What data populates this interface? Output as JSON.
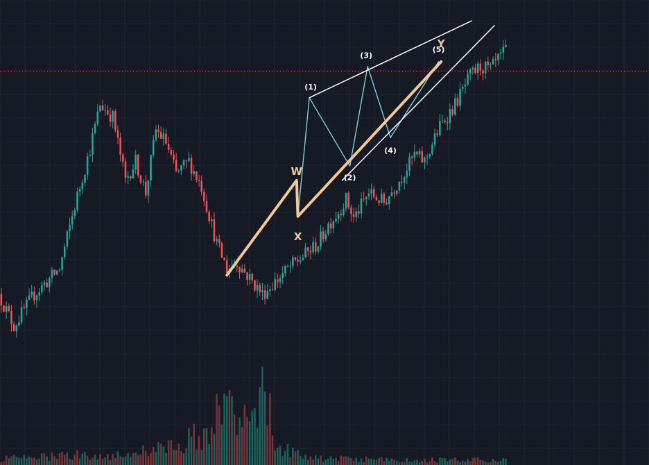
{
  "chart_data": {
    "type": "candlestick",
    "title": "",
    "xlabel": "",
    "ylabel": "",
    "grid": true,
    "legend": "none",
    "colors": {
      "background": "#161a25",
      "grid": "#232733",
      "up": "#26a69a",
      "down": "#ef5350",
      "volume_up": "#1f6e67",
      "volume_down": "#8c3a3c",
      "wxy_path": "#f4c99a",
      "channel": "#ffffff",
      "impulse_path": "#7fd1d6",
      "price_line": "#ef5350",
      "wave_label": "#ffffff",
      "wxy_label": "#f4c99a"
    },
    "labels": {
      "w": "W",
      "x": "X",
      "y": "Y",
      "wave1": "(1)",
      "wave2": "(2)",
      "wave3": "(3)",
      "wave4": "(4)",
      "wave5": "(5)"
    },
    "price_key_points": [
      [
        0,
        120
      ],
      [
        6,
        70
      ],
      [
        14,
        120
      ],
      [
        24,
        160
      ],
      [
        30,
        260
      ],
      [
        36,
        350
      ],
      [
        40,
        420
      ],
      [
        45,
        400
      ],
      [
        50,
        300
      ],
      [
        54,
        330
      ],
      [
        58,
        280
      ],
      [
        62,
        380
      ],
      [
        66,
        360
      ],
      [
        70,
        310
      ],
      [
        75,
        330
      ],
      [
        80,
        290
      ],
      [
        86,
        200
      ],
      [
        90,
        160
      ],
      [
        94,
        170
      ],
      [
        100,
        140
      ],
      [
        104,
        120
      ],
      [
        108,
        135
      ],
      [
        114,
        160
      ],
      [
        120,
        180
      ],
      [
        126,
        200
      ],
      [
        130,
        230
      ],
      [
        134,
        250
      ],
      [
        137,
        270
      ],
      [
        140,
        240
      ],
      [
        146,
        280
      ],
      [
        152,
        265
      ],
      [
        158,
        300
      ],
      [
        164,
        340
      ],
      [
        168,
        330
      ],
      [
        174,
        385
      ],
      [
        180,
        420
      ],
      [
        186,
        465
      ],
      [
        190,
        480
      ],
      [
        194,
        475
      ],
      [
        200,
        505
      ]
    ],
    "volume_key_points": [
      [
        0,
        10
      ],
      [
        8,
        12
      ],
      [
        20,
        14
      ],
      [
        30,
        18
      ],
      [
        40,
        15
      ],
      [
        50,
        20
      ],
      [
        60,
        25
      ],
      [
        70,
        35
      ],
      [
        80,
        55
      ],
      [
        86,
        85
      ],
      [
        90,
        120
      ],
      [
        94,
        95
      ],
      [
        100,
        110
      ],
      [
        104,
        160
      ],
      [
        108,
        40
      ],
      [
        120,
        12
      ],
      [
        140,
        10
      ],
      [
        160,
        8
      ],
      [
        180,
        9
      ],
      [
        200,
        8
      ]
    ],
    "wxy_path": [
      [
        89.5,
        1.0
      ],
      [
        117.0,
        2.0
      ],
      [
        117.5,
        1.62
      ],
      [
        174.0,
        3.25
      ]
    ],
    "impulse_path": [
      [
        117.5,
        1.62
      ],
      [
        122.0,
        2.87
      ],
      [
        138.0,
        2.15
      ],
      [
        145.0,
        3.2
      ],
      [
        154.0,
        2.45
      ],
      [
        173.0,
        3.25
      ]
    ],
    "channel_upper": [
      [
        122.0,
        2.87
      ],
      [
        186.0,
        3.68
      ]
    ],
    "channel_lower": [
      [
        135.0,
        2.0
      ],
      [
        195.0,
        3.63
      ]
    ],
    "price_line": 3.15,
    "ylim": [
      -1.0,
      3.9
    ],
    "xlim": [
      0,
      256
    ]
  }
}
